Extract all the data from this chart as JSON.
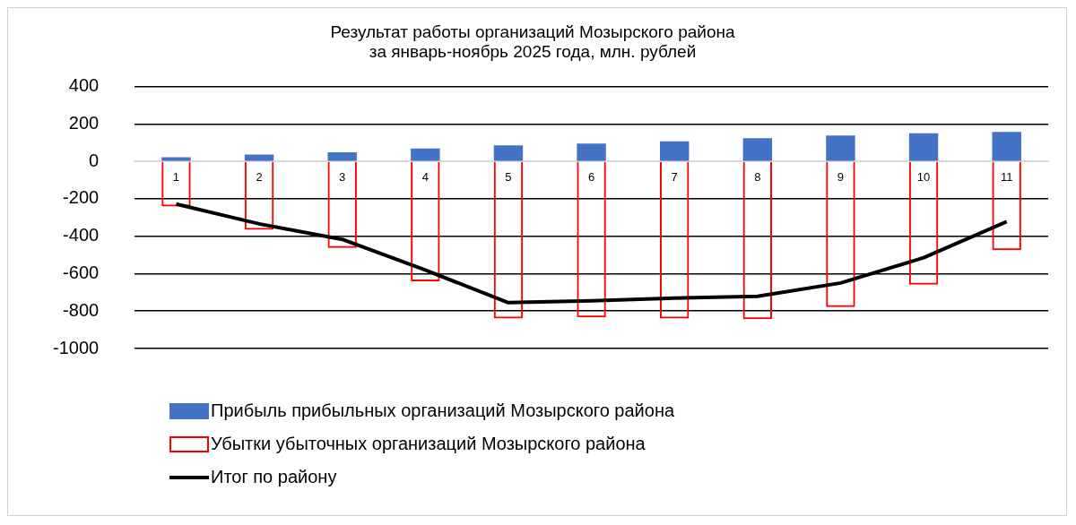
{
  "chart_data": {
    "type": "bar",
    "title": "Результат работы организаций Мозырского района\nза январь-ноябрь 2025 года, млн. рублей",
    "categories": [
      "1",
      "2",
      "3",
      "4",
      "5",
      "6",
      "7",
      "8",
      "9",
      "10",
      "11"
    ],
    "stacked": true,
    "series": [
      {
        "name": "Прибыль прибыльных организаций Мозырского района",
        "color": "#4472c4",
        "values": [
          22,
          36,
          48,
          69,
          86,
          95,
          107,
          124,
          138,
          150,
          157
        ]
      },
      {
        "name": "Убытки убыточных организаций Мозырского района",
        "color": "#ff0000",
        "values": [
          -241,
          -365,
          -462,
          -641,
          -840,
          -834,
          -840,
          -843,
          -779,
          -659,
          -474
        ]
      },
      {
        "name": "Итог по району",
        "type": "line",
        "color": "#000000",
        "marker": "none",
        "values": [
          -228,
          -334,
          -417,
          -581,
          -755,
          -745,
          -731,
          -721,
          -650,
          -515,
          -322
        ]
      }
    ],
    "ylim": [
      -1000,
      400
    ],
    "yticks": [
      {
        "value": -1000,
        "label": "-1000"
      },
      -800,
      -600,
      -400,
      -200,
      0,
      200,
      400
    ],
    "grid": "y",
    "legend": "bottom left"
  }
}
